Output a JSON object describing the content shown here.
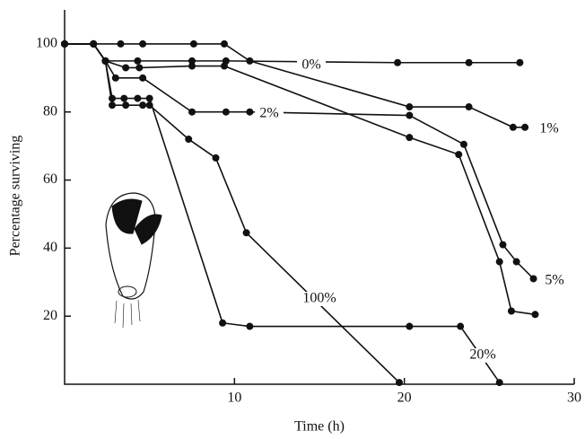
{
  "chart_data": {
    "type": "line",
    "xlabel": "Time (h)",
    "ylabel": "Percentage surviving",
    "xlim": [
      0,
      30
    ],
    "xticks": [
      10,
      20,
      30
    ],
    "ylim": [
      0,
      110
    ],
    "yticks": [
      20,
      40,
      60,
      80,
      100
    ],
    "color": "#111111",
    "series": [
      {
        "name": "0%",
        "x": [
          0,
          1.7,
          2.4,
          4.3,
          7.5,
          9.5,
          19.6,
          23.8,
          26.8
        ],
        "values": [
          100,
          100,
          95,
          95,
          95,
          95,
          94.5,
          94.5,
          94.5
        ]
      },
      {
        "name": "1%",
        "x": [
          0,
          1.7,
          3.3,
          4.6,
          7.6,
          9.4,
          10.9,
          20.3,
          23.8,
          26.4,
          27.1
        ],
        "values": [
          100,
          100,
          100,
          100,
          100,
          100,
          95,
          81.5,
          81.5,
          75.5,
          75.5
        ]
      },
      {
        "name": "2%",
        "x": [
          0,
          1.7,
          2.4,
          3,
          4.6,
          7.5,
          9.5,
          10.9,
          20.3,
          23.5,
          25.8,
          26.6,
          27.6
        ],
        "values": [
          100,
          100,
          95,
          90,
          90,
          80,
          80,
          80,
          79,
          70.5,
          41,
          36,
          31
        ]
      },
      {
        "name": "5%",
        "x": [
          0,
          1.7,
          2.4,
          3.6,
          4.4,
          7.5,
          9.4,
          20.3,
          23.2,
          25.6,
          26.3,
          27.7
        ],
        "values": [
          100,
          100,
          95,
          93,
          93,
          93.5,
          93.5,
          72.5,
          67.5,
          36,
          21.5,
          20.5
        ]
      },
      {
        "name": "20%",
        "x": [
          0,
          1.7,
          2.4,
          2.8,
          3.5,
          4.3,
          5,
          9.3,
          10.9,
          20.3,
          23.3,
          25.6
        ],
        "values": [
          100,
          100,
          95,
          84,
          84,
          84,
          84,
          18,
          17,
          17,
          17,
          0.5
        ]
      },
      {
        "name": "100%",
        "x": [
          0,
          1.7,
          2.4,
          2.8,
          3.6,
          4.6,
          5,
          7.3,
          8.9,
          10.7,
          19.7
        ],
        "values": [
          100,
          100,
          95,
          82,
          82,
          82,
          82,
          72,
          66.5,
          44.5,
          0.5
        ]
      }
    ]
  }
}
